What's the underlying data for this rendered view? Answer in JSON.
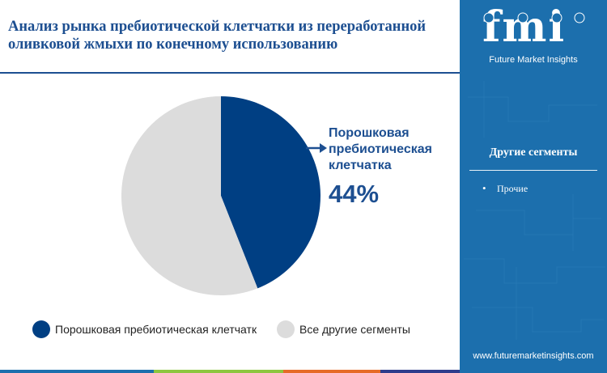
{
  "header": {
    "title": "Анализ рынка пребиотической клетчатки из переработанной оливковой жмыхи по конечному использованию"
  },
  "brand": {
    "logo_text": "fmi",
    "name": "Future Market Insights",
    "url": "www.futuremarketinsights.com"
  },
  "sidebar": {
    "heading": "Другие сегменты",
    "items": [
      "Прочие"
    ]
  },
  "chart_data": {
    "type": "pie",
    "slices": [
      {
        "name": "Порошковая пребиотическая клетчатка",
        "value": 44,
        "color": "#003f83"
      },
      {
        "name": "Все другие сегменты",
        "value": 56,
        "color": "#dcdcdc"
      }
    ],
    "callout": {
      "label": "Порошковая пребиотическая клетчатка",
      "value": "44%"
    },
    "legend": [
      {
        "label": "Порошковая пребиотическая клетчатк",
        "color": "#003f83"
      },
      {
        "label": "Все другие сегменты",
        "color": "#dcdcdc"
      }
    ]
  },
  "colors": {
    "primary": "#1d4f91",
    "sidebar": "#1c6fad",
    "footer_stripes": [
      "#1c6fad",
      "#8dc63f",
      "#e66b27",
      "#2e3c8c",
      "#1c6fad"
    ]
  }
}
